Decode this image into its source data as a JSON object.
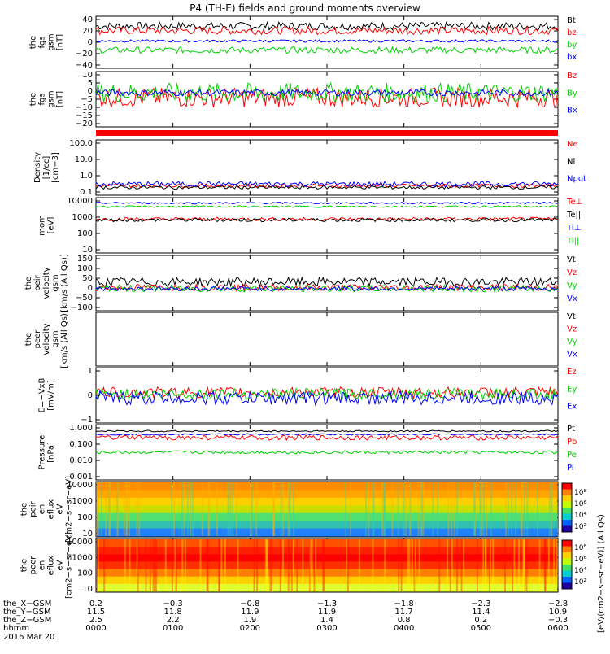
{
  "title": "P4 (TH-E) fields and ground moments overview",
  "colors": {
    "black": "#000000",
    "red": "#ff0000",
    "green": "#00d000",
    "blue": "#0000ff"
  },
  "chart_data": [
    {
      "type": "line",
      "ylabel": [
        "the",
        "fgs",
        "gsm",
        "[nT]"
      ],
      "yticks": [
        "40",
        "20",
        "0",
        "−20",
        "−40"
      ],
      "ylim": [
        -40,
        40
      ],
      "legend": [
        {
          "name": "Bt",
          "color": "black"
        },
        {
          "name": "bz",
          "color": "red"
        },
        {
          "name": "by",
          "color": "green"
        },
        {
          "name": "bx",
          "color": "blue"
        }
      ],
      "series": [
        {
          "name": "Bt",
          "color": "black",
          "level": 25,
          "amp": 6
        },
        {
          "name": "bz",
          "color": "red",
          "level": 18,
          "amp": 6
        },
        {
          "name": "by",
          "color": "green",
          "level": -12,
          "amp": 5
        },
        {
          "name": "bx",
          "color": "blue",
          "level": 2,
          "amp": 2
        }
      ]
    },
    {
      "type": "line",
      "ylabel": [
        "the",
        "fgs",
        "gsm",
        "[nT]"
      ],
      "yticks": [
        "10",
        "5",
        "0",
        "−5",
        "−10",
        "−15",
        "−20"
      ],
      "ylim": [
        -22,
        12
      ],
      "legend": [
        {
          "name": "Bz",
          "color": "red"
        },
        {
          "name": "By",
          "color": "green"
        },
        {
          "name": "Bx",
          "color": "blue"
        }
      ],
      "series": [
        {
          "name": "Bz",
          "color": "red",
          "level": -4,
          "amp": 6
        },
        {
          "name": "By",
          "color": "green",
          "level": -1,
          "amp": 6
        },
        {
          "name": "Bx",
          "color": "blue",
          "level": -1,
          "amp": 2
        }
      ]
    },
    {
      "type": "line",
      "ylabel": [
        "Density",
        "[1/cc]",
        "[cm−3]"
      ],
      "yticks": [
        "100.0",
        "10.0",
        "1.0",
        "0.1"
      ],
      "ylim": [
        -1,
        2.2
      ],
      "log": true,
      "legend": [
        {
          "name": "Ne",
          "color": "red"
        },
        {
          "name": "Ni",
          "color": "black"
        },
        {
          "name": "Npot",
          "color": "blue"
        }
      ],
      "series": [
        {
          "name": "Ne",
          "color": "red",
          "level": -0.45,
          "amp": 0.1
        },
        {
          "name": "Ni",
          "color": "black",
          "level": -0.55,
          "amp": 0.1
        },
        {
          "name": "Npot",
          "color": "blue",
          "level": -0.35,
          "amp": 0.15
        }
      ]
    },
    {
      "type": "line",
      "ylabel": [
        "mom",
        "[eV]"
      ],
      "yticks": [
        "10000",
        "1000",
        "100",
        "10"
      ],
      "ylim": [
        1,
        4.1
      ],
      "log": true,
      "legend": [
        {
          "name": "Te⊥",
          "color": "red"
        },
        {
          "name": "Te||",
          "color": "black"
        },
        {
          "name": "Ti⊥",
          "color": "blue"
        },
        {
          "name": "Ti||",
          "color": "green"
        }
      ],
      "series": [
        {
          "name": "Te⊥",
          "color": "red",
          "level": 2.9,
          "amp": 0.1
        },
        {
          "name": "Te||",
          "color": "black",
          "level": 2.85,
          "amp": 0.1
        },
        {
          "name": "Ti⊥",
          "color": "blue",
          "level": 3.8,
          "amp": 0.05
        },
        {
          "name": "Ti||",
          "color": "green",
          "level": 3.6,
          "amp": 0.05
        }
      ]
    },
    {
      "type": "line",
      "ylabel": [
        "the",
        "peir",
        "velocity",
        "gsm",
        "[km/s (All Qs)]"
      ],
      "yticks": [
        "150",
        "100",
        "50",
        "0",
        "−50",
        "−100"
      ],
      "ylim": [
        -100,
        150
      ],
      "legend": [
        {
          "name": "Vt",
          "color": "black"
        },
        {
          "name": "Vz",
          "color": "red"
        },
        {
          "name": "Vy",
          "color": "green"
        },
        {
          "name": "Vx",
          "color": "blue"
        }
      ],
      "series": [
        {
          "name": "Vt",
          "color": "black",
          "level": 30,
          "amp": 20
        },
        {
          "name": "Vz",
          "color": "red",
          "level": 5,
          "amp": 15
        },
        {
          "name": "Vy",
          "color": "green",
          "level": 0,
          "amp": 15
        },
        {
          "name": "Vx",
          "color": "blue",
          "level": 0,
          "amp": 10
        }
      ]
    },
    {
      "type": "line",
      "ylabel": [
        "the",
        "peer",
        "velocity",
        "gsm",
        "[km/s (All Qs)]"
      ],
      "yticks": [],
      "ylim": [
        0,
        1
      ],
      "legend": [
        {
          "name": "Vt",
          "color": "black"
        },
        {
          "name": "Vz",
          "color": "red"
        },
        {
          "name": "Vy",
          "color": "green"
        },
        {
          "name": "Vx",
          "color": "blue"
        }
      ],
      "series": []
    },
    {
      "type": "line",
      "ylabel": [
        "E=−VxB",
        "[mV/m]"
      ],
      "yticks": [
        "1",
        "0",
        "−1"
      ],
      "ylim": [
        -2,
        2
      ],
      "legend": [
        {
          "name": "Ez",
          "color": "red"
        },
        {
          "name": "Ey",
          "color": "green"
        },
        {
          "name": "Ex",
          "color": "blue"
        }
      ],
      "series": [
        {
          "name": "Ez",
          "color": "red",
          "level": 0.2,
          "amp": 0.4
        },
        {
          "name": "Ey",
          "color": "green",
          "level": 0.1,
          "amp": 0.4
        },
        {
          "name": "Ex",
          "color": "blue",
          "level": -0.2,
          "amp": 0.5
        }
      ]
    },
    {
      "type": "line",
      "ylabel": [
        "Pressure",
        "[nPa]"
      ],
      "yticks": [
        "1.000",
        "0.100",
        "0.010",
        "0.001"
      ],
      "ylim": [
        -3.3,
        0.1
      ],
      "log": true,
      "legend": [
        {
          "name": "Pt",
          "color": "black"
        },
        {
          "name": "Pb",
          "color": "red"
        },
        {
          "name": "Pe",
          "color": "green"
        },
        {
          "name": "Pi",
          "color": "blue"
        }
      ],
      "series": [
        {
          "name": "Pt",
          "color": "black",
          "level": -0.3,
          "amp": 0.05
        },
        {
          "name": "Pb",
          "color": "red",
          "level": -0.7,
          "amp": 0.15
        },
        {
          "name": "Pe",
          "color": "green",
          "level": -1.6,
          "amp": 0.1
        },
        {
          "name": "Pi",
          "color": "blue",
          "level": -0.5,
          "amp": 0.05
        }
      ]
    },
    {
      "type": "heatmap",
      "ylabel": [
        "the",
        "peir",
        "en",
        "eflux",
        "eV",
        "[cm2−s−sr−eV]"
      ],
      "yticks": [
        "10000",
        "1000",
        "100",
        "10"
      ]
    },
    {
      "type": "heatmap",
      "ylabel": [
        "the",
        "peer",
        "en",
        "eflux",
        "eV",
        "[cm2−s−sr−eV]"
      ],
      "yticks": [
        "10000",
        "1000",
        "100",
        "10"
      ]
    }
  ],
  "colorbar": {
    "label": "[eV/(cm2−s−sr−eV)]",
    "upper_ticks": [
      "10⁸",
      "10⁶",
      "10⁴",
      "10²"
    ],
    "lower_ticks": [
      "10⁸",
      "10⁶",
      "10⁴",
      "10²"
    ],
    "combined_label": "[eV/(cm2−s−sr−eV)] (All Qs)"
  },
  "xaxis": {
    "rows": [
      {
        "label": "the_X−GSM",
        "values": [
          "0.2",
          "−0.3",
          "−0.8",
          "−1.3",
          "−1.8",
          "−2.3",
          "−2.8"
        ]
      },
      {
        "label": "the_Y−GSM",
        "values": [
          "11.5",
          "11.8",
          "11.9",
          "11.9",
          "11.7",
          "11.4",
          "10.9"
        ]
      },
      {
        "label": "the_Z−GSM",
        "values": [
          "2.5",
          "2.2",
          "1.9",
          "1.4",
          "0.8",
          "0.2",
          "−0.3"
        ]
      },
      {
        "label": "hhmm",
        "values": [
          "0000",
          "0100",
          "0200",
          "0300",
          "0400",
          "0500",
          "0600"
        ]
      }
    ],
    "date": "2016 Mar 20"
  }
}
